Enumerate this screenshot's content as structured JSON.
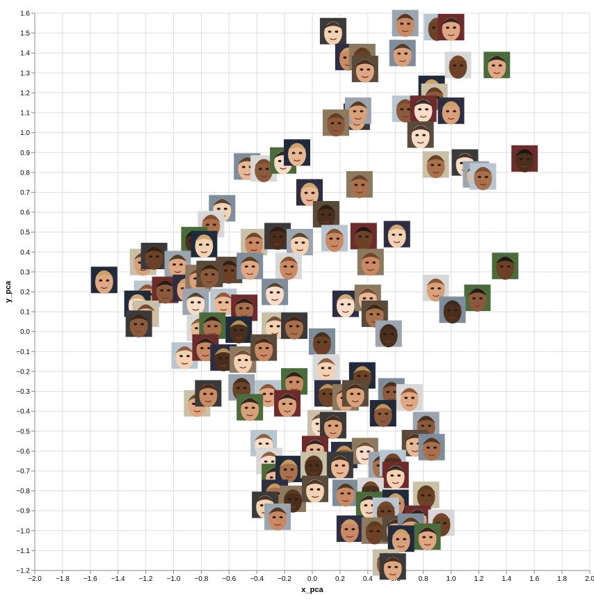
{
  "chart_data": {
    "type": "scatter",
    "title": "",
    "xlabel": "x_pca",
    "ylabel": "y_pca",
    "xlim": [
      -2.0,
      2.0
    ],
    "ylim": [
      -1.2,
      1.6
    ],
    "grid": true,
    "marker": "face thumbnail image",
    "x_ticks": [
      "−2.0",
      "−1.8",
      "−1.6",
      "−1.4",
      "−1.2",
      "−1.0",
      "−0.8",
      "−0.6",
      "−0.4",
      "−0.2",
      "0.0",
      "0.2",
      "0.4",
      "0.6",
      "0.8",
      "1.0",
      "1.2",
      "1.4",
      "1.6",
      "1.8",
      "2.0"
    ],
    "y_ticks": [
      "1.6",
      "1.5",
      "1.4",
      "1.3",
      "1.2",
      "1.1",
      "1.0",
      "0.9",
      "0.8",
      "0.7",
      "0.6",
      "0.5",
      "0.4",
      "0.3",
      "0.2",
      "0.1",
      "0.0",
      "−0.1",
      "−0.2",
      "−0.3",
      "−0.4",
      "−0.5",
      "−0.6",
      "−0.7",
      "−0.8",
      "−0.9",
      "−1.0",
      "−1.1",
      "−1.2"
    ],
    "points": [
      {
        "x": 0.15,
        "y": 1.51
      },
      {
        "x": 0.67,
        "y": 1.55
      },
      {
        "x": 0.9,
        "y": 1.53
      },
      {
        "x": 1.0,
        "y": 1.53
      },
      {
        "x": 0.26,
        "y": 1.38
      },
      {
        "x": 0.36,
        "y": 1.38
      },
      {
        "x": 0.38,
        "y": 1.32
      },
      {
        "x": 0.65,
        "y": 1.4
      },
      {
        "x": 1.05,
        "y": 1.34
      },
      {
        "x": 1.33,
        "y": 1.34
      },
      {
        "x": 0.86,
        "y": 1.22
      },
      {
        "x": 0.88,
        "y": 1.18
      },
      {
        "x": 0.32,
        "y": 1.08
      },
      {
        "x": 0.33,
        "y": 1.11
      },
      {
        "x": 0.67,
        "y": 1.12
      },
      {
        "x": 0.8,
        "y": 1.12
      },
      {
        "x": 1.0,
        "y": 1.11
      },
      {
        "x": 0.17,
        "y": 1.05
      },
      {
        "x": 0.78,
        "y": 0.99
      },
      {
        "x": -0.47,
        "y": 0.83
      },
      {
        "x": -0.35,
        "y": 0.82
      },
      {
        "x": -0.21,
        "y": 0.86
      },
      {
        "x": -0.11,
        "y": 0.9
      },
      {
        "x": 0.89,
        "y": 0.84
      },
      {
        "x": 1.1,
        "y": 0.85
      },
      {
        "x": 1.18,
        "y": 0.79
      },
      {
        "x": 1.23,
        "y": 0.78
      },
      {
        "x": 1.53,
        "y": 0.87
      },
      {
        "x": -0.02,
        "y": 0.7
      },
      {
        "x": 0.34,
        "y": 0.74
      },
      {
        "x": 0.1,
        "y": 0.59
      },
      {
        "x": -0.65,
        "y": 0.62
      },
      {
        "x": -0.73,
        "y": 0.54
      },
      {
        "x": -0.85,
        "y": 0.46
      },
      {
        "x": -0.78,
        "y": 0.44
      },
      {
        "x": -0.42,
        "y": 0.45
      },
      {
        "x": -0.25,
        "y": 0.48
      },
      {
        "x": -0.09,
        "y": 0.45
      },
      {
        "x": 0.16,
        "y": 0.47
      },
      {
        "x": 0.37,
        "y": 0.48
      },
      {
        "x": 0.61,
        "y": 0.49
      },
      {
        "x": 0.42,
        "y": 0.35
      },
      {
        "x": -0.6,
        "y": 0.31
      },
      {
        "x": -0.45,
        "y": 0.33
      },
      {
        "x": -0.17,
        "y": 0.33
      },
      {
        "x": 1.39,
        "y": 0.33
      },
      {
        "x": -1.5,
        "y": 0.26
      },
      {
        "x": -1.22,
        "y": 0.35
      },
      {
        "x": -1.14,
        "y": 0.38
      },
      {
        "x": -0.97,
        "y": 0.34
      },
      {
        "x": -1.19,
        "y": 0.19
      },
      {
        "x": -1.06,
        "y": 0.21
      },
      {
        "x": -0.91,
        "y": 0.22
      },
      {
        "x": -0.82,
        "y": 0.27
      },
      {
        "x": -0.74,
        "y": 0.29
      },
      {
        "x": -0.27,
        "y": 0.2
      },
      {
        "x": 0.89,
        "y": 0.22
      },
      {
        "x": 1.19,
        "y": 0.17
      },
      {
        "x": -1.26,
        "y": 0.14
      },
      {
        "x": -1.2,
        "y": 0.09
      },
      {
        "x": -1.25,
        "y": 0.04
      },
      {
        "x": -0.84,
        "y": 0.15
      },
      {
        "x": -0.64,
        "y": 0.15
      },
      {
        "x": -0.49,
        "y": 0.12
      },
      {
        "x": 0.24,
        "y": 0.14
      },
      {
        "x": 0.4,
        "y": 0.17
      },
      {
        "x": 0.45,
        "y": 0.09
      },
      {
        "x": 1.01,
        "y": 0.11
      },
      {
        "x": -0.81,
        "y": 0.02
      },
      {
        "x": -0.72,
        "y": 0.03
      },
      {
        "x": -0.53,
        "y": 0.01
      },
      {
        "x": -0.27,
        "y": 0.03
      },
      {
        "x": -0.13,
        "y": 0.03
      },
      {
        "x": 0.55,
        "y": -0.01
      },
      {
        "x": -0.92,
        "y": -0.12
      },
      {
        "x": -0.77,
        "y": -0.08
      },
      {
        "x": -0.64,
        "y": -0.13
      },
      {
        "x": -0.5,
        "y": -0.14
      },
      {
        "x": -0.35,
        "y": -0.08
      },
      {
        "x": 0.07,
        "y": -0.05
      },
      {
        "x": 0.1,
        "y": -0.18
      },
      {
        "x": -0.13,
        "y": -0.25
      },
      {
        "x": 0.36,
        "y": -0.22
      },
      {
        "x": -0.83,
        "y": -0.36
      },
      {
        "x": -0.75,
        "y": -0.31
      },
      {
        "x": -0.51,
        "y": -0.28
      },
      {
        "x": -0.32,
        "y": -0.31
      },
      {
        "x": -0.18,
        "y": -0.36
      },
      {
        "x": 0.11,
        "y": -0.31
      },
      {
        "x": 0.24,
        "y": -0.33
      },
      {
        "x": 0.31,
        "y": -0.31
      },
      {
        "x": 0.57,
        "y": -0.3
      },
      {
        "x": 0.7,
        "y": -0.33
      },
      {
        "x": -0.45,
        "y": -0.38
      },
      {
        "x": 0.51,
        "y": -0.41
      },
      {
        "x": 0.06,
        "y": -0.46
      },
      {
        "x": 0.15,
        "y": -0.47
      },
      {
        "x": 0.82,
        "y": -0.47
      },
      {
        "x": -0.35,
        "y": -0.56
      },
      {
        "x": 0.02,
        "y": -0.59
      },
      {
        "x": 0.23,
        "y": -0.62
      },
      {
        "x": 0.38,
        "y": -0.6
      },
      {
        "x": 0.74,
        "y": -0.56
      },
      {
        "x": 0.86,
        "y": -0.58
      },
      {
        "x": -0.31,
        "y": -0.65
      },
      {
        "x": -0.27,
        "y": -0.73
      },
      {
        "x": -0.17,
        "y": -0.69
      },
      {
        "x": 0.01,
        "y": -0.67
      },
      {
        "x": 0.2,
        "y": -0.67
      },
      {
        "x": 0.5,
        "y": -0.67
      },
      {
        "x": 0.58,
        "y": -0.66
      },
      {
        "x": 0.6,
        "y": -0.72
      },
      {
        "x": -0.27,
        "y": -0.81
      },
      {
        "x": -0.14,
        "y": -0.84
      },
      {
        "x": 0.02,
        "y": -0.79
      },
      {
        "x": 0.24,
        "y": -0.81
      },
      {
        "x": 0.42,
        "y": -0.8
      },
      {
        "x": 0.41,
        "y": -0.87
      },
      {
        "x": 0.6,
        "y": -0.86
      },
      {
        "x": 0.82,
        "y": -0.82
      },
      {
        "x": -0.34,
        "y": -0.87
      },
      {
        "x": -0.25,
        "y": -0.93
      },
      {
        "x": 0.53,
        "y": -0.9
      },
      {
        "x": 0.76,
        "y": -0.94
      },
      {
        "x": 0.27,
        "y": -0.99
      },
      {
        "x": 0.45,
        "y": -1.0
      },
      {
        "x": 0.6,
        "y": -0.99
      },
      {
        "x": 0.71,
        "y": -0.98
      },
      {
        "x": 0.93,
        "y": -0.96
      },
      {
        "x": 0.83,
        "y": -1.03
      },
      {
        "x": 0.64,
        "y": -1.04
      },
      {
        "x": 0.53,
        "y": -1.16
      },
      {
        "x": 0.58,
        "y": -1.18
      }
    ]
  },
  "colors": {
    "grid": "#dddddd",
    "axis": "#888888",
    "skin_tones": [
      "#f3d2b3",
      "#e8b894",
      "#d9a17a",
      "#c98a63",
      "#a8704b",
      "#8a5a3a",
      "#6b4226",
      "#4a2f1d",
      "#f7dcc8",
      "#e0a882"
    ],
    "backgrounds": [
      "#3a3a3a",
      "#7d8d9b",
      "#b8c6d1",
      "#4a6b3a",
      "#2d2d44",
      "#c9c0a8",
      "#5a4a3a",
      "#9aa5b0",
      "#d8d8d8",
      "#6e2b2b",
      "#1f2a3a",
      "#8c7a60"
    ]
  }
}
